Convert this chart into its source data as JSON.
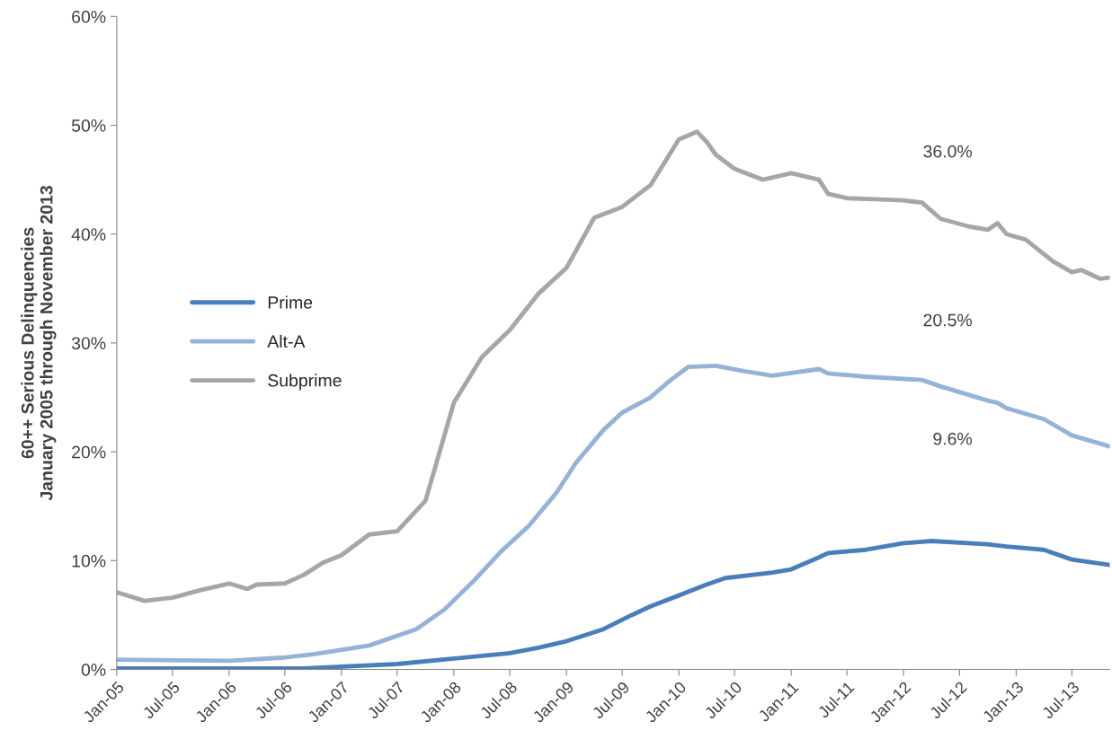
{
  "chart_data": {
    "type": "line",
    "ylabel": "60++ Serious Delinquencies\nJanuary 2005 through November 2013",
    "series": [
      {
        "name": "Prime",
        "color": "#4a7ebb",
        "x": [
          "2005-01",
          "2005-07",
          "2006-01",
          "2006-09",
          "2007-07",
          "2008-01",
          "2008-07",
          "2008-10",
          "2009-01",
          "2009-05",
          "2009-08",
          "2009-10",
          "2010-01",
          "2010-04",
          "2010-06",
          "2010-11",
          "2011-01",
          "2011-04",
          "2011-05",
          "2011-09",
          "2012-01",
          "2012-04",
          "2012-10",
          "2012-12",
          "2013-04",
          "2013-07",
          "2013-11"
        ],
        "values": [
          0.1,
          0.1,
          0.1,
          0.1,
          0.5,
          1.0,
          1.5,
          2.0,
          2.6,
          3.7,
          5.0,
          5.8,
          6.8,
          7.8,
          8.4,
          8.9,
          9.2,
          10.3,
          10.7,
          11.0,
          11.6,
          11.8,
          11.5,
          11.3,
          11.0,
          10.1,
          9.6
        ]
      },
      {
        "name": "Alt-A",
        "color": "#95b3d7",
        "x": [
          "2005-01",
          "2006-01",
          "2006-07",
          "2006-10",
          "2007-04",
          "2007-06",
          "2007-09",
          "2007-12",
          "2008-03",
          "2008-06",
          "2008-09",
          "2008-12",
          "2009-02",
          "2009-05",
          "2009-07",
          "2009-10",
          "2009-12",
          "2010-02",
          "2010-05",
          "2010-08",
          "2010-11",
          "2011-04",
          "2011-05",
          "2011-09",
          "2012-03",
          "2012-05",
          "2012-10",
          "2012-11",
          "2012-12",
          "2013-04",
          "2013-07",
          "2013-11"
        ],
        "values": [
          0.9,
          0.8,
          1.1,
          1.4,
          2.2,
          2.8,
          3.7,
          5.5,
          8.0,
          10.8,
          13.2,
          16.3,
          19.0,
          22.0,
          23.6,
          25.0,
          26.5,
          27.8,
          27.9,
          27.4,
          27.0,
          27.6,
          27.2,
          26.9,
          26.6,
          26.0,
          24.7,
          24.5,
          24.0,
          23.0,
          21.5,
          20.5
        ]
      },
      {
        "name": "Subprime",
        "color": "#a6a6a6",
        "x": [
          "2005-01",
          "2005-04",
          "2005-07",
          "2005-10",
          "2006-01",
          "2006-03",
          "2006-04",
          "2006-07",
          "2006-09",
          "2006-11",
          "2007-01",
          "2007-04",
          "2007-07",
          "2007-10",
          "2008-01",
          "2008-04",
          "2008-07",
          "2008-10",
          "2009-01",
          "2009-04",
          "2009-07",
          "2009-10",
          "2010-01",
          "2010-03",
          "2010-04",
          "2010-05",
          "2010-07",
          "2010-10",
          "2011-01",
          "2011-04",
          "2011-05",
          "2011-07",
          "2011-10",
          "2012-01",
          "2012-03",
          "2012-05",
          "2012-08",
          "2012-10",
          "2012-11",
          "2012-12",
          "2013-02",
          "2013-05",
          "2013-07",
          "2013-08",
          "2013-10",
          "2013-11"
        ],
        "values": [
          7.1,
          6.3,
          6.6,
          7.3,
          7.9,
          7.4,
          7.8,
          7.9,
          8.7,
          9.8,
          10.5,
          12.4,
          12.7,
          15.5,
          24.5,
          28.7,
          31.2,
          34.5,
          36.9,
          41.5,
          42.5,
          44.5,
          48.7,
          49.4,
          48.5,
          47.3,
          46.0,
          45.0,
          45.6,
          45.0,
          43.7,
          43.3,
          43.2,
          43.1,
          42.9,
          41.4,
          40.7,
          40.4,
          41.0,
          40.0,
          39.5,
          37.5,
          36.5,
          36.7,
          35.9,
          36.0
        ]
      }
    ],
    "annotations": [
      "36.0%",
      "20.5%",
      "9.6%"
    ],
    "xlim": [
      "2005-01",
      "2013-11"
    ],
    "xticks": [
      {
        "value": "2005-01",
        "label": "Jan-05"
      },
      {
        "value": "2005-07",
        "label": "Jul-05"
      },
      {
        "value": "2006-01",
        "label": "Jan-06"
      },
      {
        "value": "2006-07",
        "label": "Jul-06"
      },
      {
        "value": "2007-01",
        "label": "Jan-07"
      },
      {
        "value": "2007-07",
        "label": "Jul-07"
      },
      {
        "value": "2008-01",
        "label": "Jan-08"
      },
      {
        "value": "2008-07",
        "label": "Jul-08"
      },
      {
        "value": "2009-01",
        "label": "Jan-09"
      },
      {
        "value": "2009-07",
        "label": "Jul-09"
      },
      {
        "value": "2010-01",
        "label": "Jan-10"
      },
      {
        "value": "2010-07",
        "label": "Jul-10"
      },
      {
        "value": "2011-01",
        "label": "Jan-11"
      },
      {
        "value": "2011-07",
        "label": "Jul-11"
      },
      {
        "value": "2012-01",
        "label": "Jan-12"
      },
      {
        "value": "2012-07",
        "label": "Jul-12"
      },
      {
        "value": "2013-01",
        "label": "Jan-13"
      },
      {
        "value": "2013-07",
        "label": "Jul-13"
      }
    ],
    "ylim": [
      0,
      60
    ],
    "yticks": [
      {
        "value": 0,
        "label": "0%"
      },
      {
        "value": 10,
        "label": "10%"
      },
      {
        "value": 20,
        "label": "20%"
      },
      {
        "value": 30,
        "label": "30%"
      },
      {
        "value": 40,
        "label": "40%"
      },
      {
        "value": 50,
        "label": "50%"
      },
      {
        "value": 60,
        "label": "60%"
      }
    ],
    "grid": false,
    "legend": "center left",
    "line_style": "solid",
    "marker": "none"
  }
}
